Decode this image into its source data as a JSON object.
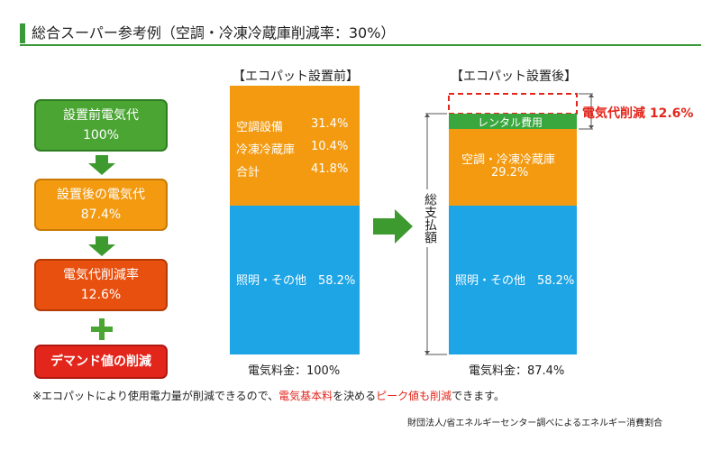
{
  "title": "総合スーパー参考例（空調・冷凍冷蔵庫削減率：30%）",
  "flow": {
    "before": {
      "label": "設置前電気代",
      "value": "100%"
    },
    "after": {
      "label": "設置後の電気代",
      "value": "87.4%"
    },
    "rate": {
      "label": "電気代削減率",
      "value": "12.6%"
    },
    "demand": {
      "label": "デマンド値の削減"
    }
  },
  "bar_before": {
    "heading": "【エコパット設置前】",
    "rows": [
      {
        "name": "空調設備",
        "value": "31.4%"
      },
      {
        "name": "冷凍冷蔵庫",
        "value": "10.4%"
      },
      {
        "name": "合計",
        "value": "41.8%"
      }
    ],
    "lighting": "照明・その他　58.2%",
    "caption": "電気料金：100%"
  },
  "bar_after": {
    "heading": "【エコパット設置後】",
    "rental": "レンタル費用",
    "cooling_label": "空調・冷凍冷蔵庫",
    "cooling_value": "29.2%",
    "lighting": "照明・その他　58.2%",
    "caption": "電気料金：87.4%"
  },
  "total_label": "総支払額",
  "reduction_label": "電気代削減 12.6%",
  "footnote": {
    "p1": "※エコパットにより使用電力量が削減できるので、",
    "p2": "電気基本料",
    "p3": "を決める",
    "p4": "ピーク値も削減",
    "p5": "できます。"
  },
  "source": "財団法人/省エネルギーセンター調べによるエネルギー消費割合",
  "colors": {
    "green": "#3aa63e",
    "orange": "#f39a10",
    "blue": "#1ea5e6",
    "red": "#e3261c",
    "red_orange": "#e8500f"
  }
}
